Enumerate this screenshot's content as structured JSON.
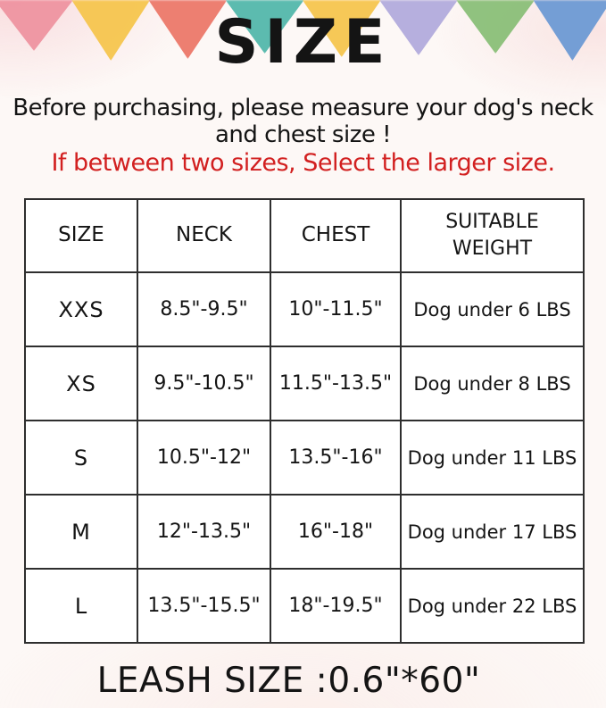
{
  "page": {
    "background": "#fdf8f6",
    "text_color": "#141414"
  },
  "bunting": {
    "triangles": [
      {
        "name": "pink",
        "color": "#ef93a0",
        "height": 57
      },
      {
        "name": "yellow",
        "color": "#f6c54d",
        "height": 68
      },
      {
        "name": "coral",
        "color": "#ec7869",
        "height": 66
      },
      {
        "name": "teal",
        "color": "#52b7ab",
        "height": 60
      },
      {
        "name": "yellow-2",
        "color": "#f6c54d",
        "height": 64
      },
      {
        "name": "lavender",
        "color": "#b2abdc",
        "height": 62
      },
      {
        "name": "green",
        "color": "#8abf78",
        "height": 60
      },
      {
        "name": "blue",
        "color": "#6c99d4",
        "height": 68
      }
    ]
  },
  "title": "SIZE",
  "intro": "Before purchasing, please measure your dog's neck and chest size !",
  "note": {
    "text": "If between two sizes, Select the larger size.",
    "color": "#d22020"
  },
  "size_table": {
    "headers": [
      "SIZE",
      "NECK",
      "CHEST",
      "SUITABLE WEIGHT"
    ],
    "rows": [
      {
        "size": "XXS",
        "neck": "8.5\"-9.5\"",
        "chest": "10\"-11.5\"",
        "weight": "Dog under 6 LBS"
      },
      {
        "size": "XS",
        "neck": "9.5\"-10.5\"",
        "chest": "11.5\"-13.5\"",
        "weight": "Dog under 8 LBS"
      },
      {
        "size": "S",
        "neck": "10.5\"-12\"",
        "chest": "13.5\"-16\"",
        "weight": "Dog under 11 LBS"
      },
      {
        "size": "M",
        "neck": "12\"-13.5\"",
        "chest": "16\"-18\"",
        "weight": "Dog under 17 LBS"
      },
      {
        "size": "L",
        "neck": "13.5\"-15.5\"",
        "chest": "18\"-19.5\"",
        "weight": "Dog under 22 LBS"
      }
    ]
  },
  "leash": "LEASH SIZE :0.6\"*60\""
}
